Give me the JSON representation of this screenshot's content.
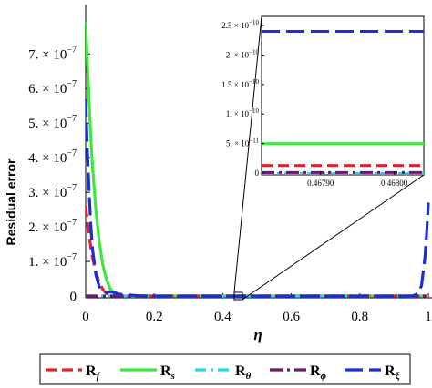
{
  "chart_data": {
    "type": "line",
    "title": "",
    "xlabel": "η",
    "ylabel": "Residual error",
    "xlim": [
      0,
      1
    ],
    "ylim": [
      0,
      8e-07
    ],
    "x_ticks": [
      "0",
      "0.2",
      "0.4",
      "0.6",
      "0.8",
      "1"
    ],
    "y_ticks": [
      "0",
      "1. × 10",
      "2. × 10",
      "3. × 10",
      "4. × 10",
      "5. × 10",
      "6. × 10",
      "7. × 10"
    ],
    "y_tick_exponent": "−7",
    "series": [
      {
        "name": "R",
        "sub": "f",
        "color": "#e8202a",
        "dash": "12,6",
        "points": [
          [
            0,
            2.6e-07
          ],
          [
            0.005,
            2.15e-07
          ],
          [
            0.01,
            1.75e-07
          ],
          [
            0.015,
            1.42e-07
          ],
          [
            0.02,
            1.12e-07
          ],
          [
            0.03,
            6.8e-08
          ],
          [
            0.04,
            3.8e-08
          ],
          [
            0.05,
            1.9e-08
          ],
          [
            0.06,
            8e-09
          ],
          [
            0.075,
            2e-09
          ],
          [
            0.09,
            0
          ],
          [
            0.2,
            0
          ],
          [
            0.4,
            0
          ],
          [
            0.6,
            0
          ],
          [
            0.8,
            0
          ],
          [
            1,
            0
          ]
        ]
      },
      {
        "name": "R",
        "sub": "s",
        "color": "#3ee63e",
        "dash": "",
        "points": [
          [
            0,
            7.95e-07
          ],
          [
            0.005,
            6.7e-07
          ],
          [
            0.01,
            5.6e-07
          ],
          [
            0.015,
            4.6e-07
          ],
          [
            0.02,
            3.75e-07
          ],
          [
            0.03,
            2.45e-07
          ],
          [
            0.04,
            1.55e-07
          ],
          [
            0.05,
            9e-08
          ],
          [
            0.06,
            5e-08
          ],
          [
            0.07,
            2.4e-08
          ],
          [
            0.08,
            1e-08
          ],
          [
            0.09,
            3e-09
          ],
          [
            0.1,
            0
          ],
          [
            0.2,
            0
          ],
          [
            0.4,
            0
          ],
          [
            0.6,
            0
          ],
          [
            0.8,
            0
          ],
          [
            1,
            0
          ]
        ]
      },
      {
        "name": "R",
        "sub": "θ",
        "color": "#22d8e8",
        "dash": "12,5,3,5",
        "points": [
          [
            0,
            0
          ],
          [
            0.2,
            0
          ],
          [
            0.4,
            0
          ],
          [
            0.6,
            0
          ],
          [
            0.8,
            0
          ],
          [
            1,
            0
          ]
        ]
      },
      {
        "name": "R",
        "sub": "ϕ",
        "color": "#6b1a6b",
        "dash": "14,5,3,5",
        "points": [
          [
            0,
            0
          ],
          [
            0.2,
            0
          ],
          [
            0.4,
            0
          ],
          [
            0.6,
            0
          ],
          [
            0.8,
            0
          ],
          [
            1,
            0
          ]
        ]
      },
      {
        "name": "R",
        "sub": "ξ",
        "color": "#1a2fd8",
        "dash": "20,7",
        "points": [
          [
            0,
            5.7e-07
          ],
          [
            0.005,
            4.2e-07
          ],
          [
            0.01,
            3e-07
          ],
          [
            0.015,
            2.05e-07
          ],
          [
            0.02,
            1.35e-07
          ],
          [
            0.03,
            6e-08
          ],
          [
            0.04,
            2.6e-08
          ],
          [
            0.05,
            1.3e-08
          ],
          [
            0.06,
            1e-08
          ],
          [
            0.07,
            1.2e-08
          ],
          [
            0.08,
            1.1e-08
          ],
          [
            0.1,
            5e-09
          ],
          [
            0.15,
            1e-09
          ],
          [
            0.2,
            0
          ],
          [
            0.4,
            0
          ],
          [
            0.6,
            0
          ],
          [
            0.8,
            0
          ],
          [
            0.95,
            0
          ],
          [
            0.96,
            2e-09
          ],
          [
            0.97,
            8e-09
          ],
          [
            0.98,
            3e-08
          ],
          [
            0.99,
            1.1e-07
          ],
          [
            0.995,
            1.8e-07
          ],
          [
            1,
            2.7e-07
          ]
        ]
      }
    ],
    "inset": {
      "xlim": [
        0.46782,
        0.46804
      ],
      "ylim": [
        0,
        2.5e-10
      ],
      "x_ticks": [
        "0.46790",
        "0.46800"
      ],
      "y_ticks": [
        "2.5 × 10",
        "2. × 10",
        "1.5 × 10",
        "1. × 10",
        "5. × 10",
        "0"
      ],
      "y_tick_exponents": [
        "−10",
        "−10",
        "−10",
        "−10",
        "−11",
        ""
      ],
      "series_levels": [
        1.3e-11,
        5e-11,
        1e-12,
        1e-12,
        2.4e-10
      ]
    },
    "legend": {
      "position": "bottom"
    }
  }
}
